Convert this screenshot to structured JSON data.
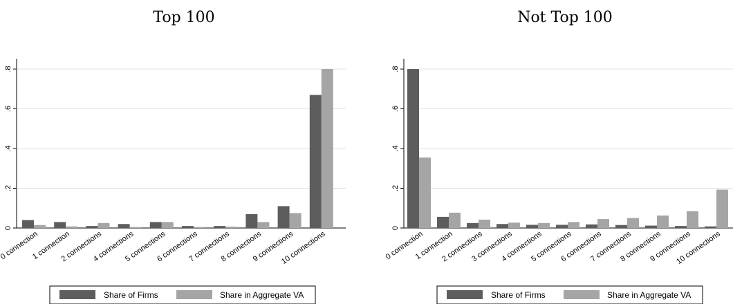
{
  "chart_data": [
    {
      "type": "bar",
      "title": "Top 100",
      "categories": [
        "0 connection",
        "1 connection",
        "2 connections",
        "4 connections",
        "5 connections",
        "6 connections",
        "7 connections",
        "8 connections",
        "9 connections",
        "10 connections"
      ],
      "series": [
        {
          "name": "Share of Firms",
          "color": "#5d5d5d",
          "values": [
            0.04,
            0.03,
            0.01,
            0.02,
            0.03,
            0.01,
            0.01,
            0.07,
            0.11,
            0.67
          ]
        },
        {
          "name": "Share in Aggregate VA",
          "color": "#a5a5a5",
          "values": [
            0.015,
            0.008,
            0.025,
            0.005,
            0.03,
            0.005,
            0.007,
            0.03,
            0.075,
            0.8
          ]
        }
      ],
      "y_ticks": [
        "0",
        ".2",
        ".4",
        ".6",
        ".8"
      ],
      "ylim": [
        0,
        0.8
      ],
      "grid": true,
      "legend_position": "bottom"
    },
    {
      "type": "bar",
      "title": "Not Top 100",
      "categories": [
        "0 connection",
        "1 connection",
        "2 connections",
        "3 connections",
        "4 connections",
        "5 connections",
        "6 connections",
        "7 connections",
        "8 connections",
        "9 connections",
        "10 connections"
      ],
      "series": [
        {
          "name": "Share of Firms",
          "color": "#5d5d5d",
          "values": [
            0.8,
            0.056,
            0.025,
            0.02,
            0.016,
            0.016,
            0.018,
            0.015,
            0.012,
            0.01,
            0.008
          ]
        },
        {
          "name": "Share in Aggregate VA",
          "color": "#a5a5a5",
          "values": [
            0.355,
            0.077,
            0.042,
            0.027,
            0.025,
            0.03,
            0.045,
            0.05,
            0.063,
            0.085,
            0.193
          ]
        }
      ],
      "y_ticks": [
        "0",
        ".2",
        ".4",
        ".6",
        ".8"
      ],
      "ylim": [
        0,
        0.8
      ],
      "grid": true,
      "legend_position": "bottom"
    }
  ]
}
